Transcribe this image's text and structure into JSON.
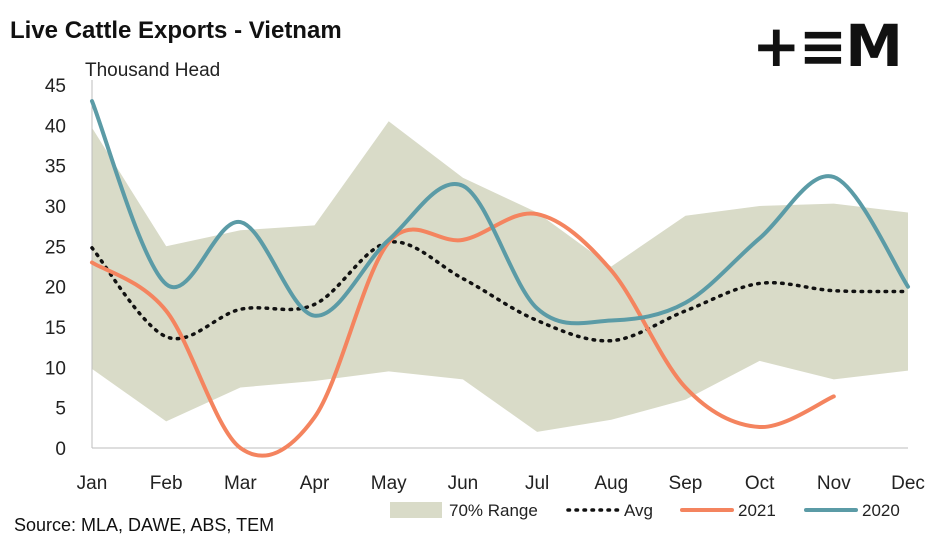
{
  "logo": {
    "text": "+≡M"
  },
  "source_note": "Source: MLA, DAWE, ABS, TEM",
  "colors": {
    "range": "#d9dbc8",
    "avg": "#111111",
    "s2021": "#f4845f",
    "s2020": "#5b9ba6"
  },
  "chart_data": {
    "type": "line",
    "title": "Live Cattle Exports - Vietnam",
    "ylabel": "Thousand Head",
    "categories": [
      "Jan",
      "Feb",
      "Mar",
      "Apr",
      "May",
      "Jun",
      "Jul",
      "Aug",
      "Sep",
      "Oct",
      "Nov",
      "Dec"
    ],
    "ylim": [
      0,
      45
    ],
    "yticks": [
      0,
      5,
      10,
      15,
      20,
      25,
      30,
      35,
      40,
      45
    ],
    "grid": false,
    "legend_position": "bottom-right",
    "range_band": {
      "name": "70% Range",
      "low": [
        9.8,
        3.3,
        7.5,
        8.3,
        9.5,
        8.5,
        2.0,
        3.5,
        6.0,
        10.8,
        8.5,
        9.6
      ],
      "high": [
        39.7,
        25.0,
        27.0,
        27.6,
        40.5,
        33.5,
        29.2,
        22.5,
        28.8,
        30.0,
        30.3,
        29.2
      ]
    },
    "series": [
      {
        "name": "Avg",
        "values": [
          24.8,
          13.8,
          17.2,
          17.8,
          25.5,
          21.0,
          15.8,
          13.3,
          17.0,
          20.4,
          19.5,
          19.4
        ]
      },
      {
        "name": "2021",
        "values": [
          23.0,
          17.0,
          0.0,
          3.8,
          25.5,
          25.8,
          29.0,
          22.0,
          7.5,
          2.6,
          6.4,
          null
        ]
      },
      {
        "name": "2020",
        "values": [
          43.0,
          20.3,
          28.0,
          16.4,
          25.8,
          32.5,
          17.3,
          15.8,
          18.0,
          26.0,
          33.6,
          20.0
        ]
      }
    ]
  }
}
